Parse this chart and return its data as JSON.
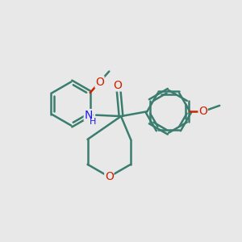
{
  "bg_color": "#e8e8e8",
  "bond_color": "#3a7d6e",
  "bond_width": 1.8,
  "o_color": "#cc2200",
  "n_color": "#1a1aee",
  "figsize": [
    3.0,
    3.0
  ],
  "dpi": 100,
  "xlim": [
    0,
    10
  ],
  "ylim": [
    0,
    10
  ]
}
